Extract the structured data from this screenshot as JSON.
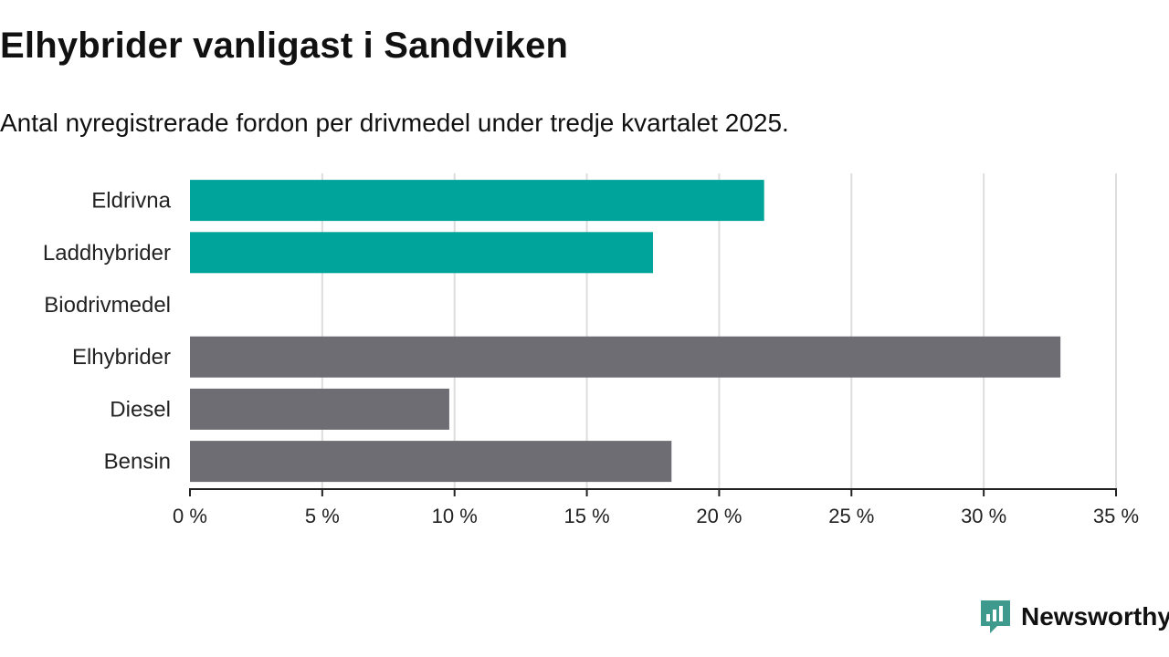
{
  "colors": {
    "electric_group": "#00A49A",
    "other_group": "#6E6D73",
    "grid": "#dddddd",
    "axis": "#222222",
    "brand": "#3D9A8C"
  },
  "brand": {
    "name": "Newsworthy",
    "icon": "newsworthy-logo-icon"
  },
  "chart_data": {
    "type": "bar",
    "orientation": "horizontal",
    "title": "Elhybrider vanligast i Sandviken",
    "subtitle": "Antal nyregistrerade fordon per drivmedel under tredje kvartalet 2025.",
    "categories": [
      "Eldrivna",
      "Laddhybrider",
      "Biodrivmedel",
      "Elhybrider",
      "Diesel",
      "Bensin"
    ],
    "values": [
      21.7,
      17.5,
      0,
      32.9,
      9.8,
      18.2
    ],
    "groups": [
      "electric",
      "electric",
      "electric",
      "other",
      "other",
      "other"
    ],
    "xlim": [
      0,
      35
    ],
    "xticks": [
      0,
      5,
      10,
      15,
      20,
      25,
      30,
      35
    ],
    "xtick_labels": [
      "0 %",
      "5 %",
      "10 %",
      "15 %",
      "20 %",
      "25 %",
      "30 %",
      "35 %"
    ],
    "xlabel": "",
    "ylabel": "",
    "grid": true
  }
}
